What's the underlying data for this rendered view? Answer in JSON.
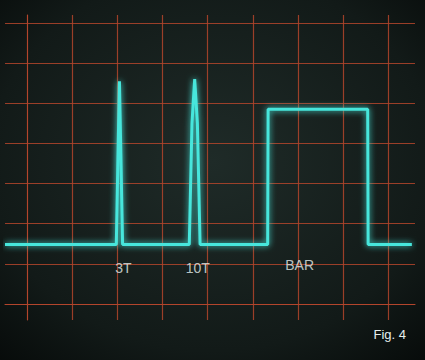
{
  "chart_data": {
    "type": "line",
    "title": "Fig. 4",
    "x": [
      -0.5,
      1.97,
      2.04,
      2.11,
      3.59,
      3.65,
      3.71,
      3.77,
      3.83,
      5.33,
      5.34,
      7.55,
      7.56,
      8.53
    ],
    "values": [
      1.48,
      1.48,
      5.55,
      1.48,
      1.48,
      4.5,
      5.6,
      4.5,
      1.48,
      1.48,
      4.85,
      4.85,
      1.48,
      1.48
    ],
    "color": "#46e6dc",
    "xlim": [
      -0.5,
      8.6
    ],
    "xticks": [
      0,
      1,
      2,
      3,
      4,
      5,
      6,
      7,
      8
    ],
    "ylim": [
      -0.4,
      7.2
    ],
    "yticks": [
      0,
      1,
      2,
      3,
      4,
      5,
      6,
      7
    ],
    "grid": true,
    "tick_labels": false,
    "annotations": [
      {
        "text": "3T",
        "x": 2.13,
        "y": 0.9
      },
      {
        "text": "10T",
        "x": 3.78,
        "y": 0.9
      },
      {
        "text": "BAR",
        "x": 6.04,
        "y": 0.97
      }
    ]
  }
}
